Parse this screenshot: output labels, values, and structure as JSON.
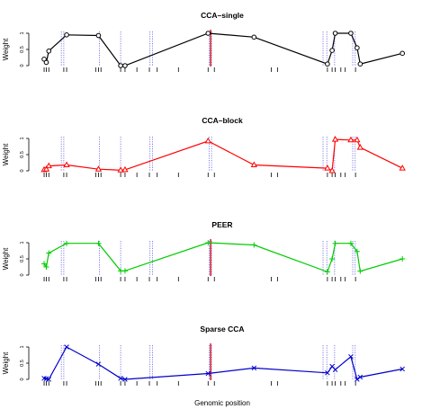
{
  "xlabel": "Genomic position",
  "ylabel": "Weight",
  "y_ticks": [
    "0",
    "0.5",
    "1"
  ],
  "ylim": [
    0,
    1
  ],
  "xlim": [
    0,
    100
  ],
  "grid": false,
  "rug_positions": [
    0.3,
    1.0,
    1.8,
    6.6,
    7.5,
    16.8,
    17.7,
    18.5,
    24.8,
    26.2,
    30.0,
    34.0,
    36.5,
    43.3,
    52.8,
    54.8,
    73.0,
    75.0,
    91.0,
    92.5,
    93.5,
    95.3,
    96.7,
    100.0
  ],
  "dotted_lines": [
    5.8,
    6.6,
    18.0,
    24.8,
    34.2,
    35.0,
    53.1,
    53.9,
    89.6,
    90.8,
    93.3,
    99.1,
    99.9
  ],
  "solid_line": 53.6,
  "colors": {
    "dotted": "#4b4bdc",
    "solid": "#d11f2b"
  },
  "chart_data": [
    {
      "type": "line",
      "title": "CCA–single",
      "color": "#000000",
      "marker": "circle",
      "x": [
        0.3,
        1.0,
        1.8,
        7.5,
        17.7,
        24.8,
        26.2,
        52.8,
        67.5,
        91.0,
        92.5,
        93.5,
        98.5,
        100.5,
        101.5,
        115.0
      ],
      "y": [
        0.2,
        0.1,
        0.45,
        0.95,
        0.93,
        0.0,
        0.0,
        1.0,
        0.88,
        0.05,
        0.47,
        1.0,
        1.0,
        0.55,
        0.05,
        0.38
      ]
    },
    {
      "type": "line",
      "title": "CCA–block",
      "color": "#ff0000",
      "marker": "triangle",
      "x": [
        0.3,
        1.0,
        1.8,
        7.5,
        17.7,
        24.8,
        26.2,
        52.8,
        67.5,
        91.0,
        92.5,
        93.5,
        98.5,
        100.5,
        101.5,
        115.0
      ],
      "y": [
        0.03,
        0.05,
        0.15,
        0.18,
        0.05,
        0.02,
        0.03,
        0.92,
        0.18,
        0.08,
        0.0,
        0.97,
        0.95,
        0.95,
        0.72,
        0.08
      ]
    },
    {
      "type": "line",
      "title": "PEER",
      "color": "#00cc00",
      "marker": "plus",
      "x": [
        0.3,
        1.0,
        1.8,
        7.5,
        17.7,
        24.8,
        26.2,
        52.8,
        67.5,
        91.0,
        92.5,
        93.5,
        98.5,
        100.5,
        101.5,
        115.0
      ],
      "y": [
        0.35,
        0.25,
        0.68,
        0.98,
        0.98,
        0.13,
        0.13,
        1.0,
        0.93,
        0.1,
        0.5,
        0.98,
        0.98,
        0.73,
        0.12,
        0.5
      ]
    },
    {
      "type": "line",
      "title": "Sparse CCA",
      "color": "#0000cc",
      "marker": "cross",
      "x": [
        0.3,
        1.0,
        1.8,
        7.5,
        17.7,
        24.8,
        26.2,
        52.8,
        67.5,
        91.0,
        92.5,
        93.5,
        98.5,
        100.5,
        101.5,
        115.0
      ],
      "y": [
        0.03,
        0.02,
        0.0,
        1.0,
        0.47,
        0.03,
        0.0,
        0.18,
        0.35,
        0.2,
        0.4,
        0.3,
        0.7,
        0.0,
        0.07,
        0.32
      ]
    }
  ]
}
